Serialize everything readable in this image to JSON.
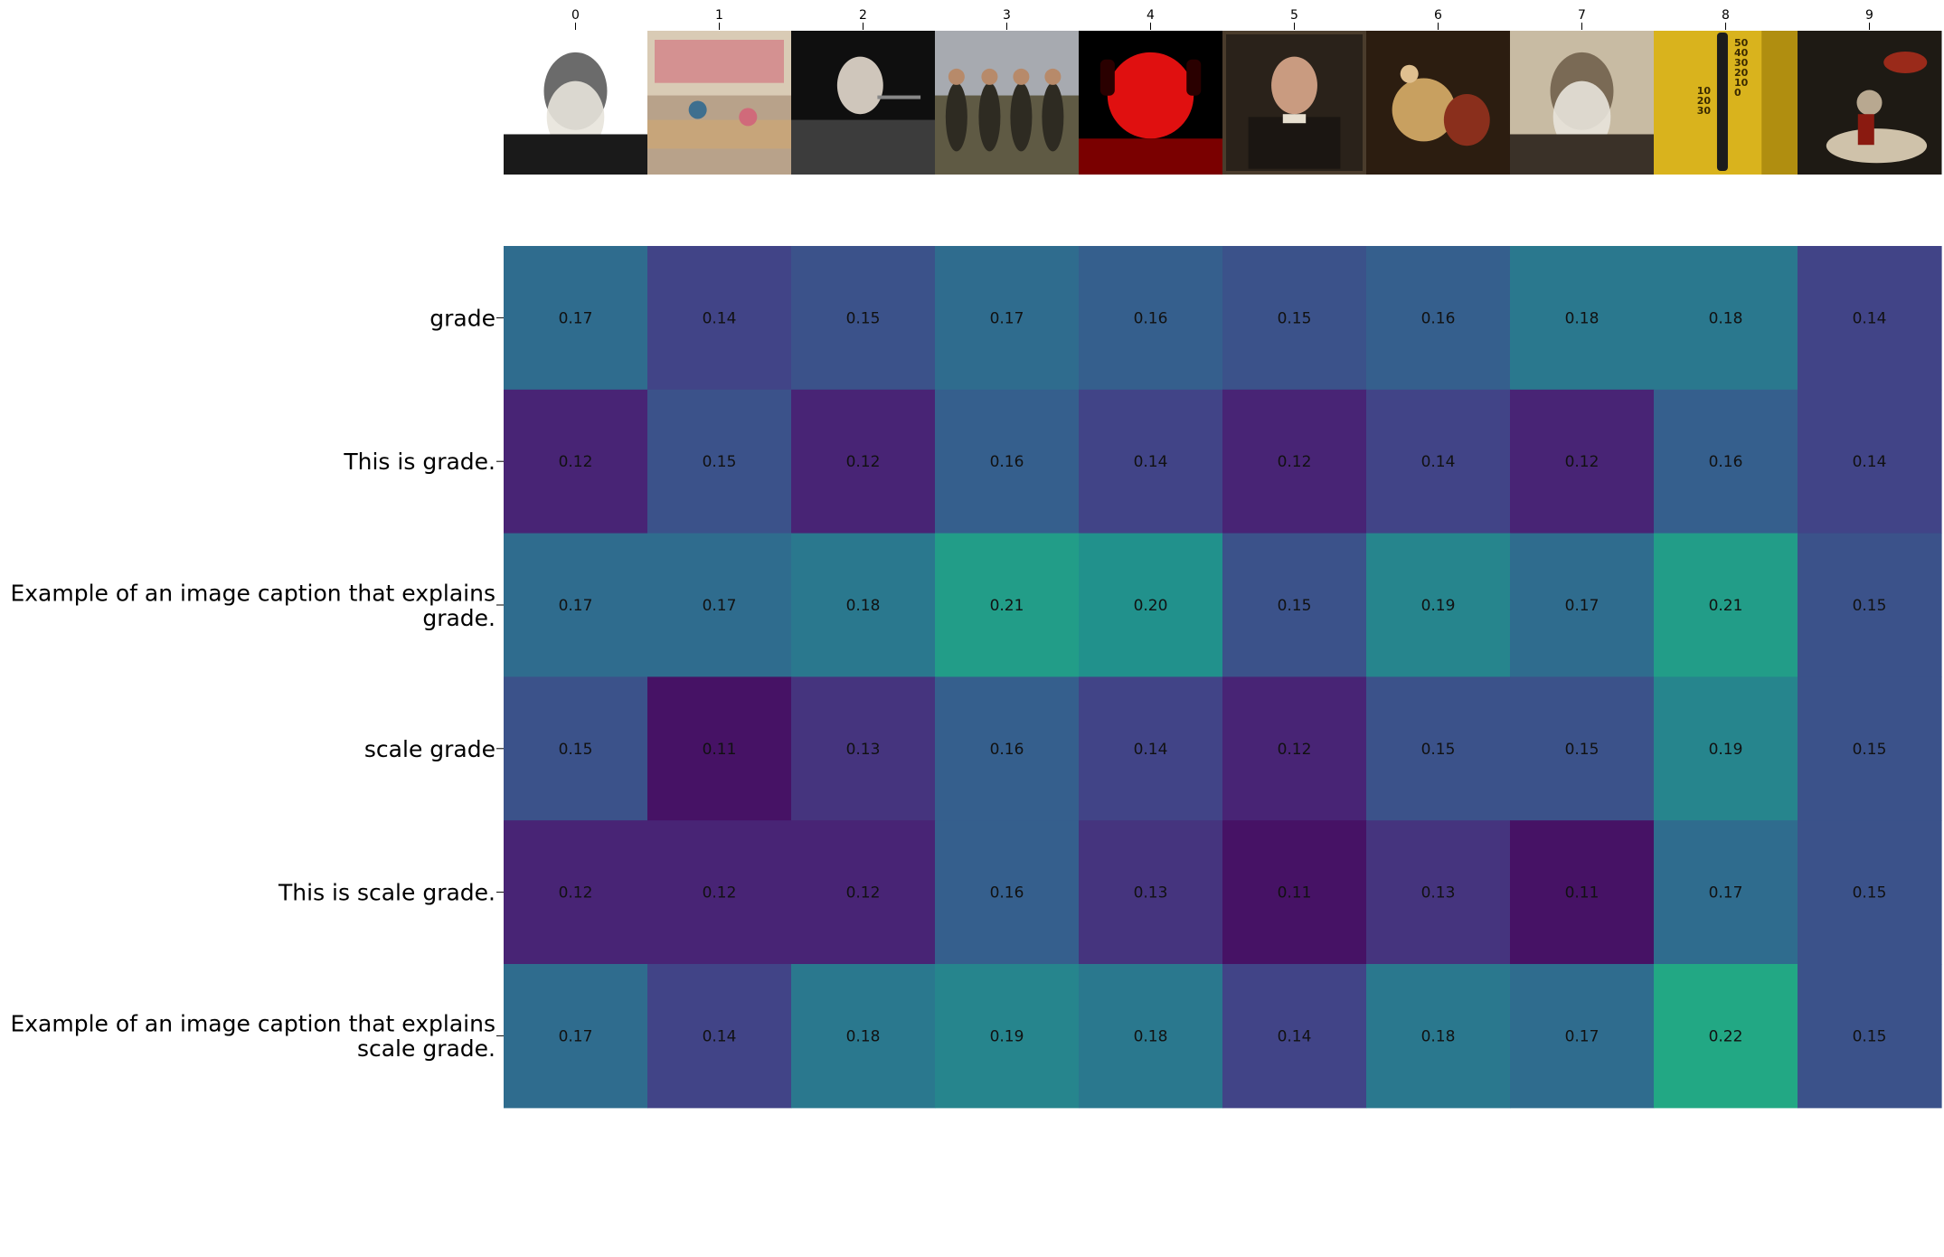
{
  "chart_data": {
    "type": "heatmap",
    "title": "",
    "xlabel": "",
    "ylabel": "",
    "x_tick_labels": [
      "0",
      "1",
      "2",
      "3",
      "4",
      "5",
      "6",
      "7",
      "8",
      "9"
    ],
    "y_tick_labels": [
      "grade",
      "This is grade.",
      "Example of an image caption that explains grade.",
      "scale grade",
      "This is scale grade.",
      "Example of an image caption that explains scale grade."
    ],
    "value_labels": [
      [
        "0.17",
        "0.14",
        "0.15",
        "0.17",
        "0.16",
        "0.15",
        "0.16",
        "0.18",
        "0.18",
        "0.14"
      ],
      [
        "0.12",
        "0.15",
        "0.12",
        "0.16",
        "0.14",
        "0.12",
        "0.14",
        "0.12",
        "0.16",
        "0.14"
      ],
      [
        "0.17",
        "0.17",
        "0.18",
        "0.21",
        "0.20",
        "0.15",
        "0.19",
        "0.17",
        "0.21",
        "0.15"
      ],
      [
        "0.15",
        "0.11",
        "0.13",
        "0.16",
        "0.14",
        "0.12",
        "0.15",
        "0.15",
        "0.19",
        "0.15"
      ],
      [
        "0.12",
        "0.12",
        "0.12",
        "0.16",
        "0.13",
        "0.11",
        "0.13",
        "0.11",
        "0.17",
        "0.15"
      ],
      [
        "0.17",
        "0.14",
        "0.18",
        "0.19",
        "0.18",
        "0.14",
        "0.18",
        "0.17",
        "0.22",
        "0.15"
      ]
    ],
    "color_range": [
      0.1,
      0.3
    ],
    "colormap": "viridis",
    "grid": false,
    "legend": "none",
    "thermometer_scale_labels": [
      "50",
      "40",
      "30",
      "20",
      "10",
      "0",
      "10",
      "20",
      "30"
    ],
    "images": [
      {
        "label": "0",
        "icon": "bearded-elderly-man-portrait-icon",
        "colors": [
          "#ffffff",
          "#6b6b6b",
          "#1a1a1a"
        ]
      },
      {
        "label": "1",
        "icon": "classroom-icon",
        "colors": [
          "#b8a28a",
          "#d06a7a",
          "#3e6f8f"
        ]
      },
      {
        "label": "2",
        "icon": "man-at-microphone-icon",
        "colors": [
          "#0f0f0f",
          "#cfc6bb",
          "#3c3c3c"
        ]
      },
      {
        "label": "3",
        "icon": "soldiers-group-icon",
        "colors": [
          "#a7aab0",
          "#5f5a44",
          "#2e2b22"
        ]
      },
      {
        "label": "4",
        "icon": "woman-with-headphones-red-icon",
        "colors": [
          "#000000",
          "#e01010",
          "#7a0000"
        ]
      },
      {
        "label": "5",
        "icon": "painted-portrait-icon",
        "colors": [
          "#4a3c2c",
          "#1b1612",
          "#c99b80"
        ]
      },
      {
        "label": "6",
        "icon": "baroque-painting-icon",
        "colors": [
          "#2c1d10",
          "#c8a060",
          "#8a2f1c"
        ]
      },
      {
        "label": "7",
        "icon": "elderly-man-sepia-portrait-icon",
        "colors": [
          "#c8bba3",
          "#7a6a55",
          "#3a3128"
        ]
      },
      {
        "label": "8",
        "icon": "thermometer-icon",
        "colors": [
          "#d9b31d",
          "#b08e10",
          "#1c1c1c"
        ]
      },
      {
        "label": "9",
        "icon": "dark-painting-figures-icon",
        "colors": [
          "#1e1a14",
          "#b8a890",
          "#9a2a1a"
        ]
      }
    ]
  }
}
